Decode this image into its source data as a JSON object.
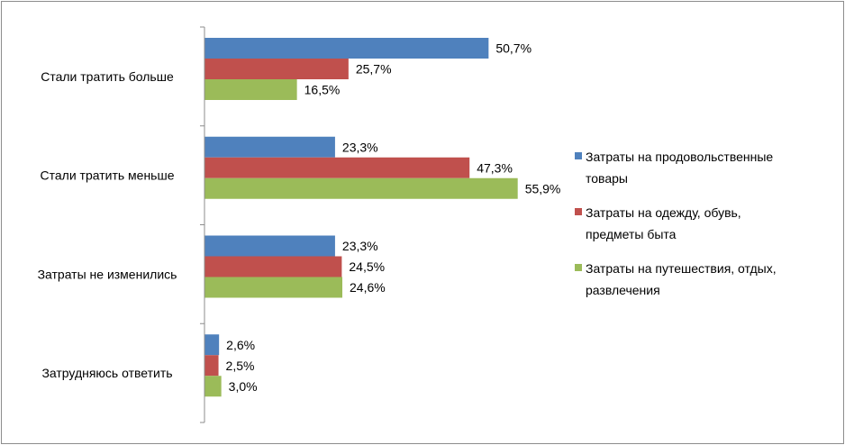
{
  "chart_data": {
    "type": "bar",
    "orientation": "horizontal",
    "categories": [
      "Стали тратить больше",
      "Стали тратить меньше",
      "Затраты не изменились",
      "Затрудняюсь ответить"
    ],
    "series": [
      {
        "name": "Затраты на продовольственные товары",
        "name_lines": [
          "Затраты на продовольственные",
          "товары"
        ],
        "color": "#4f81bd",
        "values": [
          50.7,
          23.3,
          23.3,
          2.6
        ],
        "labels": [
          "50,7%",
          "23,3%",
          "23,3%",
          "2,6%"
        ]
      },
      {
        "name": "Затраты на одежду, обувь, предметы быта",
        "name_lines": [
          "Затраты на одежду, обувь,",
          "предметы быта"
        ],
        "color": "#c0504d",
        "values": [
          25.7,
          47.3,
          24.5,
          2.5
        ],
        "labels": [
          "25,7%",
          "47,3%",
          "24,5%",
          "2,5%"
        ]
      },
      {
        "name": "Затраты на путешествия, отдых, развлечения",
        "name_lines": [
          "Затраты на путешествия, отдых,",
          "развлечения"
        ],
        "color": "#9bbb59",
        "values": [
          16.5,
          55.9,
          24.6,
          3.0
        ],
        "labels": [
          "16,5%",
          "55,9%",
          "24,6%",
          "3,0%"
        ]
      }
    ],
    "xlim": [
      0,
      60
    ],
    "grid": false,
    "legend_position": "right"
  }
}
